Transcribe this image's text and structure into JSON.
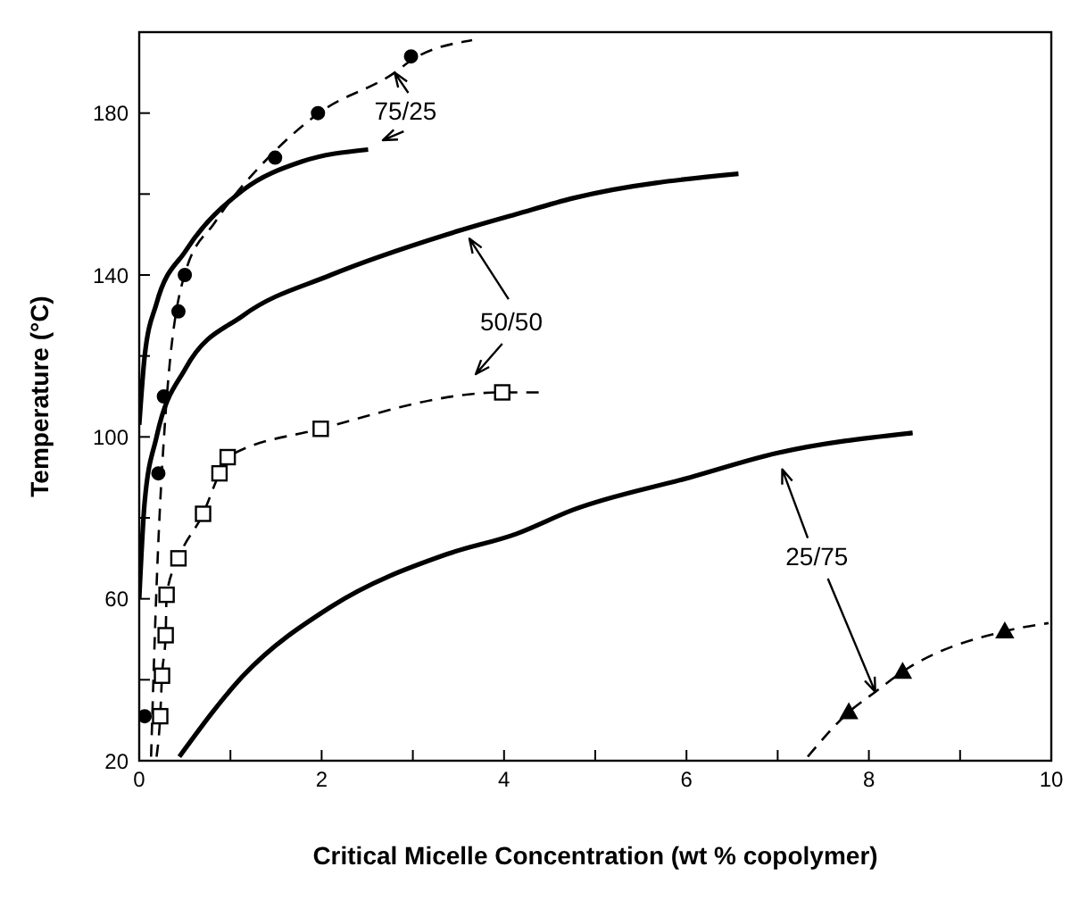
{
  "chart_data": {
    "type": "line",
    "xlabel": "Critical Micelle Concentration (wt % copolymer)",
    "ylabel": "Temperature (°C)",
    "xlim": [
      0,
      10
    ],
    "ylim": [
      20,
      200
    ],
    "xticks": [
      0,
      {
        "value": 1,
        "label": null
      },
      2,
      {
        "value": 3,
        "label": null
      },
      4,
      {
        "value": 5,
        "label": null
      },
      6,
      {
        "value": 7,
        "label": null
      },
      8,
      {
        "value": 9,
        "label": null
      },
      10
    ],
    "yticks": [
      20,
      {
        "value": 40,
        "label": null
      },
      60,
      {
        "value": 80,
        "label": null
      },
      100,
      {
        "value": 120,
        "label": null
      },
      140,
      {
        "value": 160,
        "label": null
      },
      180,
      {
        "value": 200,
        "label": null
      }
    ],
    "grid": false,
    "legend": false,
    "annotations": [
      {
        "text": "75/25",
        "x": 2.8,
        "y": 190
      },
      {
        "text": "50/50",
        "x": 3.62,
        "y": 149
      },
      {
        "text": "25/75",
        "x": 8.07,
        "y": 37
      }
    ],
    "series": [
      {
        "type": "scatter",
        "marker": "circle",
        "color": "#000000",
        "x": [
          0.06,
          0.21,
          0.27,
          0.43,
          0.5,
          1.49,
          1.96,
          2.98
        ],
        "values": [
          31,
          91,
          110,
          131,
          140,
          169,
          180,
          194
        ]
      },
      {
        "type": "line",
        "line_style": "dashed",
        "marker": "none",
        "color": "#000000",
        "x": [
          0.13,
          0.19,
          0.29,
          0.51,
          0.83,
          1.46,
          1.97,
          2.8,
          2.98,
          3.65
        ],
        "values": [
          21,
          63,
          106,
          141,
          153,
          170,
          180,
          190,
          193,
          198
        ]
      },
      {
        "type": "line",
        "line_style": "solid",
        "marker": "none",
        "color": "#000000",
        "x": [
          0,
          0.06,
          0.19,
          0.51,
          1.14,
          1.78,
          2.51
        ],
        "values": [
          103,
          120,
          133,
          146,
          161,
          168,
          171
        ]
      },
      {
        "type": "line",
        "line_style": "solid",
        "marker": "none",
        "color": "#000000",
        "x": [
          0,
          0.06,
          0.19,
          0.51,
          1.14,
          2.1,
          3.37,
          4.13,
          4.76,
          6.57
        ],
        "values": [
          60,
          84,
          100,
          117,
          130,
          140,
          150,
          155,
          159,
          165
        ]
      },
      {
        "type": "scatter",
        "marker": "square",
        "color": "#000000",
        "x": [
          0.23,
          0.25,
          0.29,
          0.3,
          0.43,
          0.7,
          0.88,
          0.97,
          1.99,
          3.98
        ],
        "values": [
          31,
          41,
          51,
          61,
          70,
          81,
          91,
          95,
          102,
          111
        ]
      },
      {
        "type": "line",
        "line_style": "dashed",
        "marker": "none",
        "color": "#000000",
        "x": [
          0.19,
          0.23,
          0.25,
          0.29,
          0.3,
          0.43,
          0.7,
          0.88,
          0.97,
          1.99,
          3.98,
          4.38
        ],
        "values": [
          21,
          31,
          41,
          51,
          61,
          70,
          81,
          91,
          95,
          102,
          111,
          111
        ]
      },
      {
        "type": "line",
        "line_style": "solid",
        "marker": "none",
        "color": "#000000",
        "x": [
          0.44,
          1.14,
          2.1,
          3.37,
          4.13,
          4.76,
          6.04,
          6.99,
          8.48
        ],
        "values": [
          21,
          41,
          58,
          71,
          76,
          82,
          90,
          96,
          101
        ]
      },
      {
        "type": "scatter",
        "marker": "triangle",
        "color": "#000000",
        "x": [
          7.78,
          8.37,
          9.49
        ],
        "values": [
          32,
          42,
          52
        ]
      },
      {
        "type": "line",
        "line_style": "dashed",
        "marker": "none",
        "color": "#000000",
        "x": [
          7.33,
          7.78,
          8.07,
          8.37,
          9.49,
          9.97
        ],
        "values": [
          21,
          32,
          37,
          42,
          52,
          54
        ]
      }
    ]
  }
}
